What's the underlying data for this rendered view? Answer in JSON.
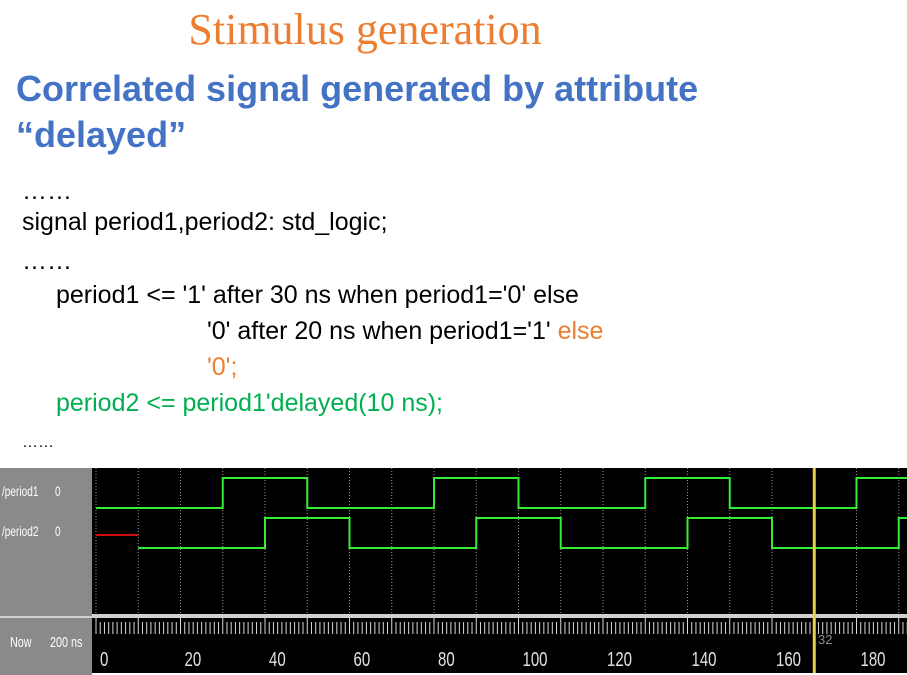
{
  "slide": {
    "title": "Stimulus generation",
    "subtitle_line1": "Correlated signal generated by attribute",
    "subtitle_line2": "“delayed”",
    "page_number": "32"
  },
  "code": {
    "dots1": "……",
    "decl": "signal period1,period2: std_logic;",
    "dots2": "……",
    "l1": "period1 <= '1' after 30 ns when period1='0' else",
    "l2_black": "'0' after 20 ns when period1='1' ",
    "l2_orange": "else",
    "l3": "'0';",
    "l4": "period2 <= period1'delayed(10 ns);",
    "dots3": "……"
  },
  "wave": {
    "signals": [
      {
        "name": "/period1",
        "value": "0"
      },
      {
        "name": "/period2",
        "value": "0"
      }
    ],
    "now_label": "Now",
    "now_value": "200 ns",
    "ticks": [
      "0",
      "20",
      "40",
      "60",
      "80",
      "100",
      "120",
      "140",
      "160",
      "180"
    ],
    "cursor_ns": 170,
    "colors": {
      "signal": "#33ee33",
      "cursor": "#e8d14a",
      "grid": "#bdbdbd",
      "undefined": "#d01010"
    }
  }
}
